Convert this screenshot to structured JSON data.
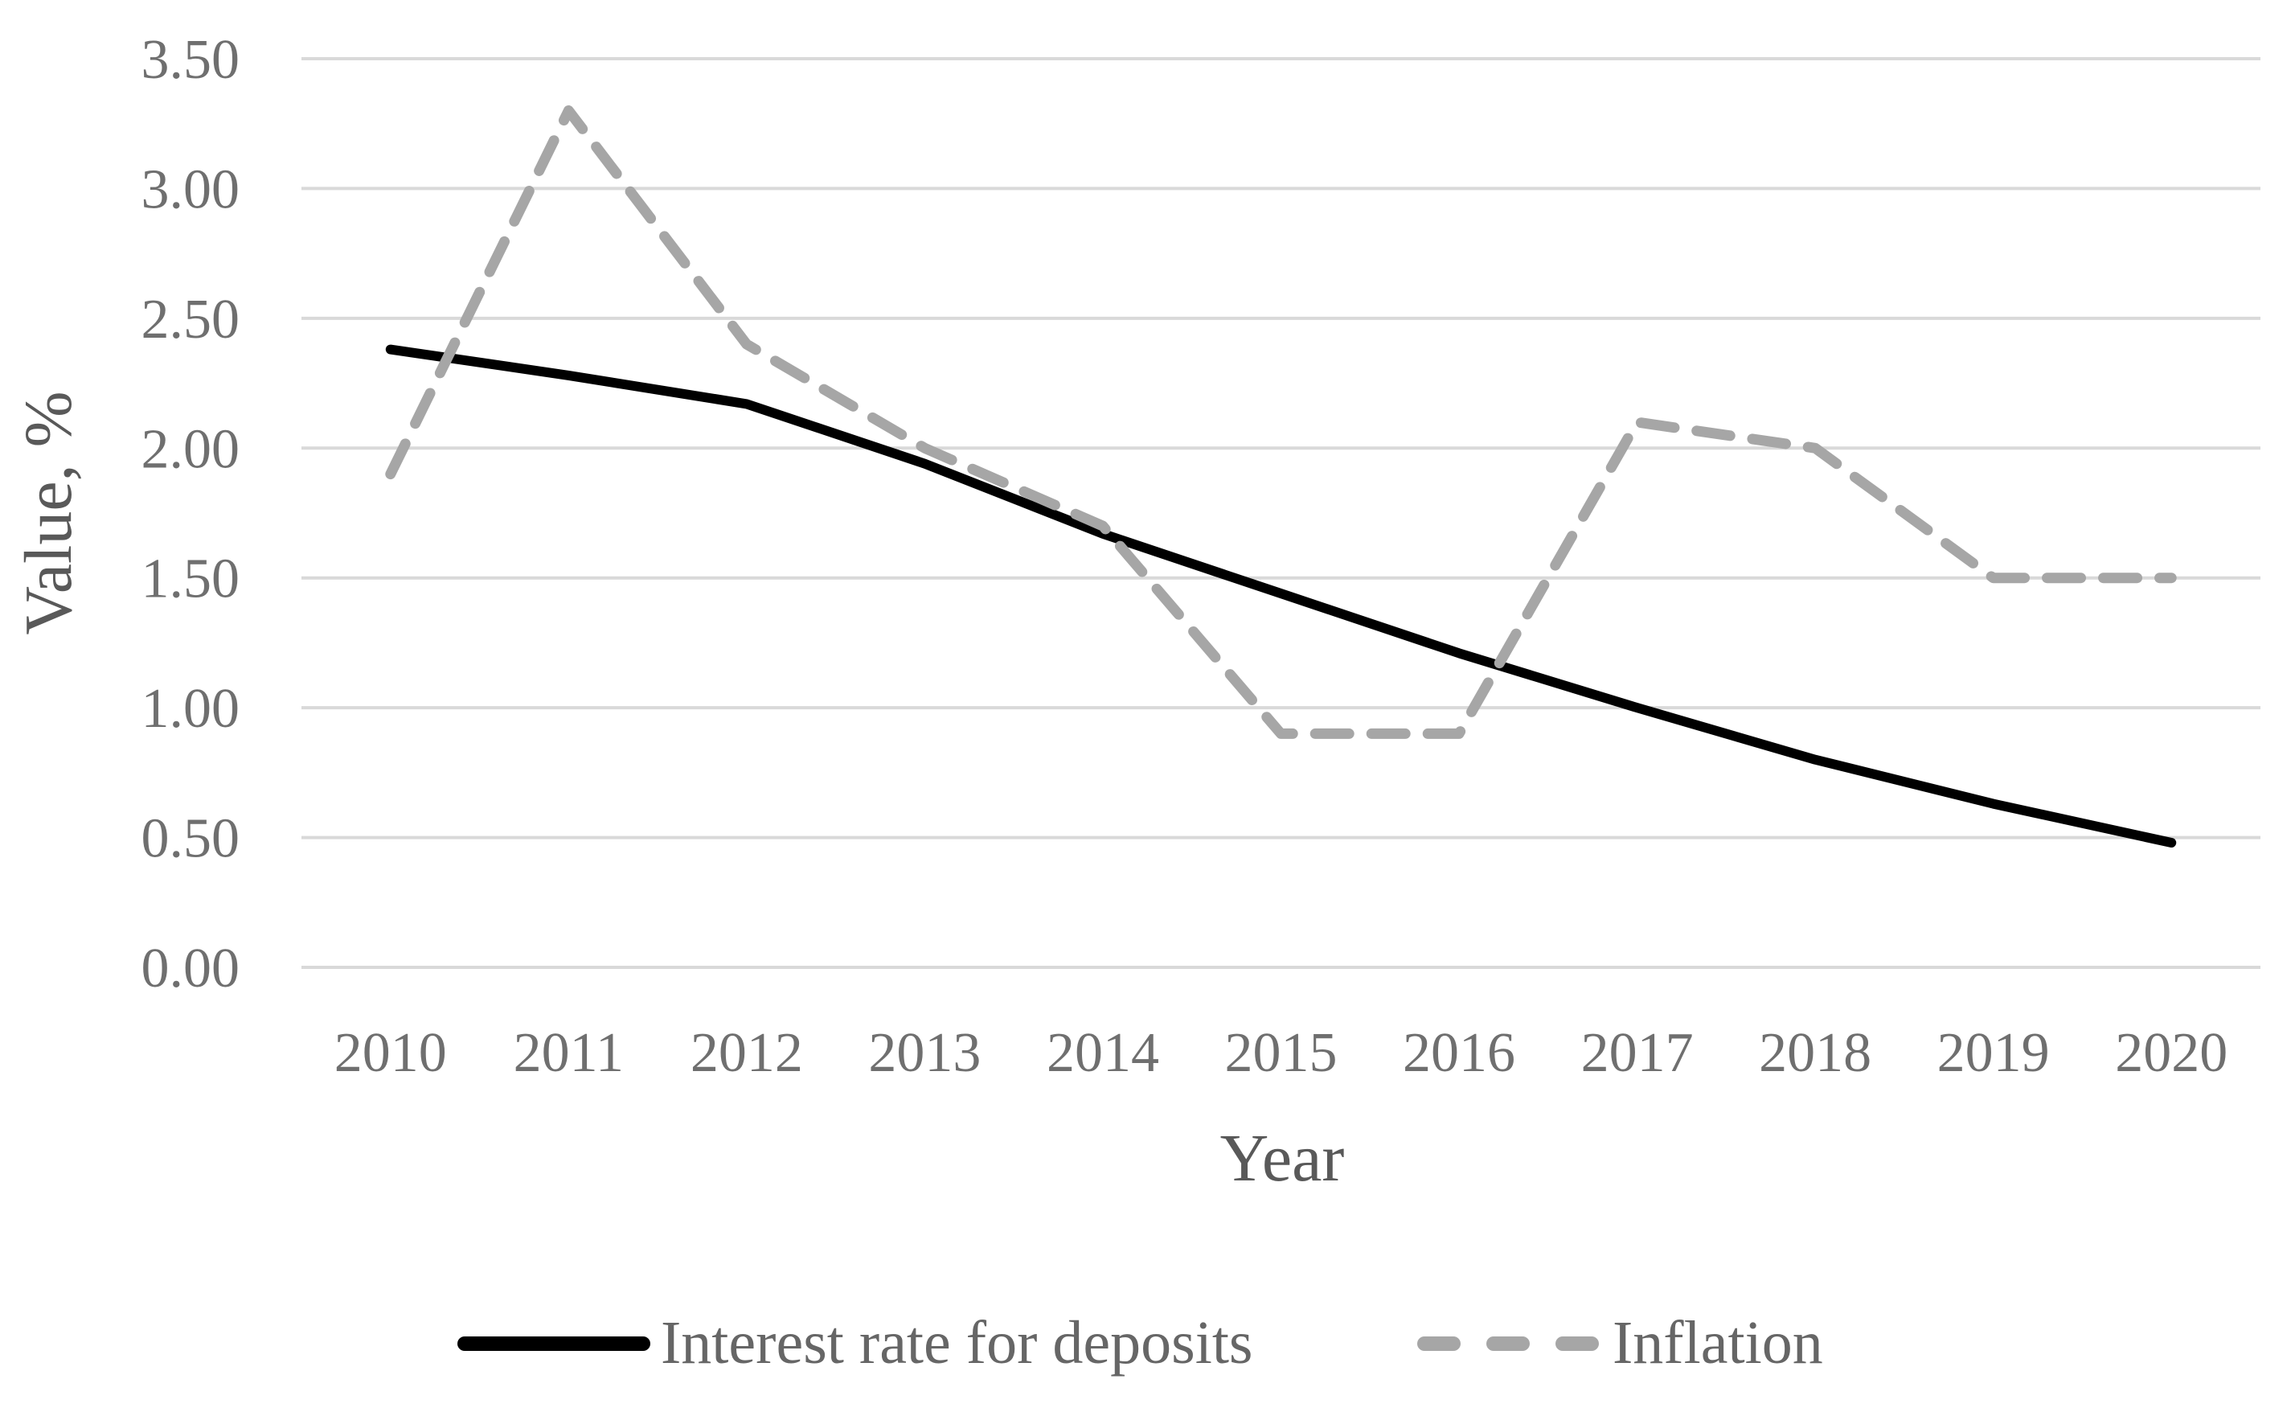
{
  "figure": {
    "background": "#ffffff",
    "description": "Line chart comparing interest rate for deposits and inflation, 2010-2020"
  },
  "chart_data": {
    "type": "line",
    "title": "",
    "x_axis": {
      "label": "Year",
      "categories": [
        "2010",
        "2011",
        "2012",
        "2013",
        "2014",
        "2015",
        "2016",
        "2017",
        "2018",
        "2019",
        "2020"
      ]
    },
    "y_axis": {
      "label": "Value, %",
      "tick_labels": [
        "0.00",
        "0.50",
        "1.00",
        "1.50",
        "2.00",
        "2.50",
        "3.00",
        "3.50"
      ],
      "min": 0,
      "max": 3.5,
      "step": 0.5
    },
    "grid": "horizontal",
    "legend_position": "bottom",
    "series": [
      {
        "name": "Interest rate for deposits",
        "style": "solid",
        "color": "#000000",
        "values": [
          2.38,
          2.28,
          2.17,
          1.94,
          1.67,
          1.44,
          1.21,
          1.0,
          0.8,
          0.63,
          0.48
        ]
      },
      {
        "name": "Inflation",
        "style": "dashed",
        "color": "#a6a6a6",
        "values": [
          1.9,
          3.3,
          2.4,
          2.0,
          1.7,
          0.9,
          0.9,
          2.1,
          2.0,
          1.5,
          1.5
        ]
      }
    ]
  },
  "colors": {
    "gridline": "#d9d9d9",
    "tick_text": "#6f6f6f",
    "axis_title_text": "#595959",
    "legend_text": "#666666"
  }
}
